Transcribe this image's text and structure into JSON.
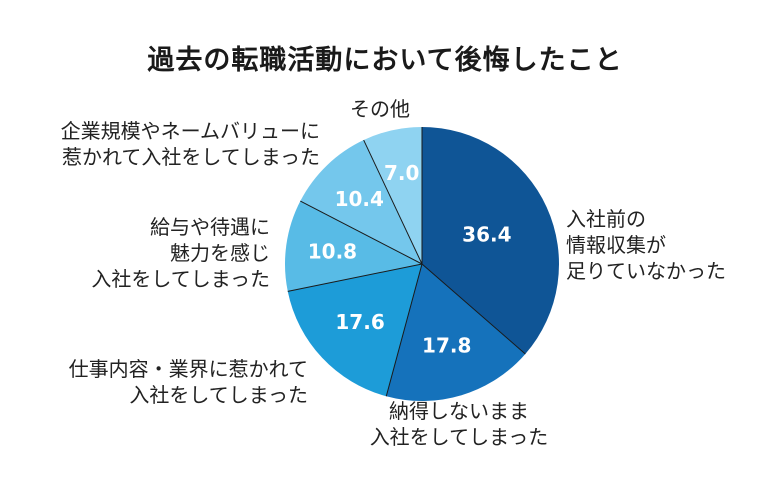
{
  "chart_data": {
    "type": "pie",
    "title": "過去の転職活動において後悔したこと",
    "start_angle_deg": 0,
    "direction": "clockwise",
    "slices": [
      {
        "lines": [
          "入社前の",
          "情報収集が",
          "足りていなかった"
        ],
        "value": 36.4,
        "value_label": "36.4",
        "color": "#0f5596"
      },
      {
        "lines": [
          "納得しないまま",
          "入社をしてしまった"
        ],
        "value": 17.8,
        "value_label": "17.8",
        "color": "#1572bb"
      },
      {
        "lines": [
          "仕事内容・業界に惹かれて",
          "入社をしてしまった"
        ],
        "value": 17.6,
        "value_label": "17.6",
        "color": "#1d9cd8"
      },
      {
        "lines": [
          "給与や待遇に",
          "魅力を感じ",
          "入社をしてしまった"
        ],
        "value": 10.8,
        "value_label": "10.8",
        "color": "#58bbe6"
      },
      {
        "lines": [
          "企業規模やネームバリューに",
          "惹かれて入社をしてしまった"
        ],
        "value": 10.4,
        "value_label": "10.4",
        "color": "#74c7ec"
      },
      {
        "lines": [
          "その他"
        ],
        "value": 7.0,
        "value_label": "7.0",
        "color": "#8fd3f1"
      }
    ],
    "data_label_color": "#ffffff",
    "separator_color": "#1a1a1a"
  }
}
